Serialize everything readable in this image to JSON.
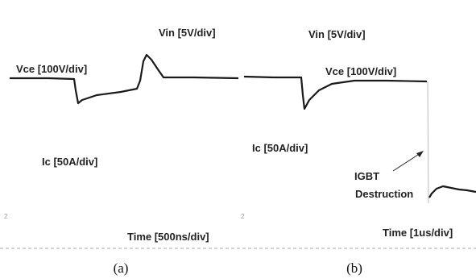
{
  "panels": [
    {
      "caption": "(a)",
      "vin": "Vin [5V/div]",
      "vce": "Vce [100V/div]",
      "ic": "Ic [50A/div]",
      "time": "Time [500ns/div]",
      "marker": "2"
    },
    {
      "caption": "(b)",
      "vin": "Vin [5V/div]",
      "vce": "Vce [100V/div]",
      "ic": "Ic [50A/div]",
      "time": "Time [1us/div]",
      "marker": "2",
      "annotation": [
        "IGBT",
        "Destruction"
      ]
    }
  ]
}
